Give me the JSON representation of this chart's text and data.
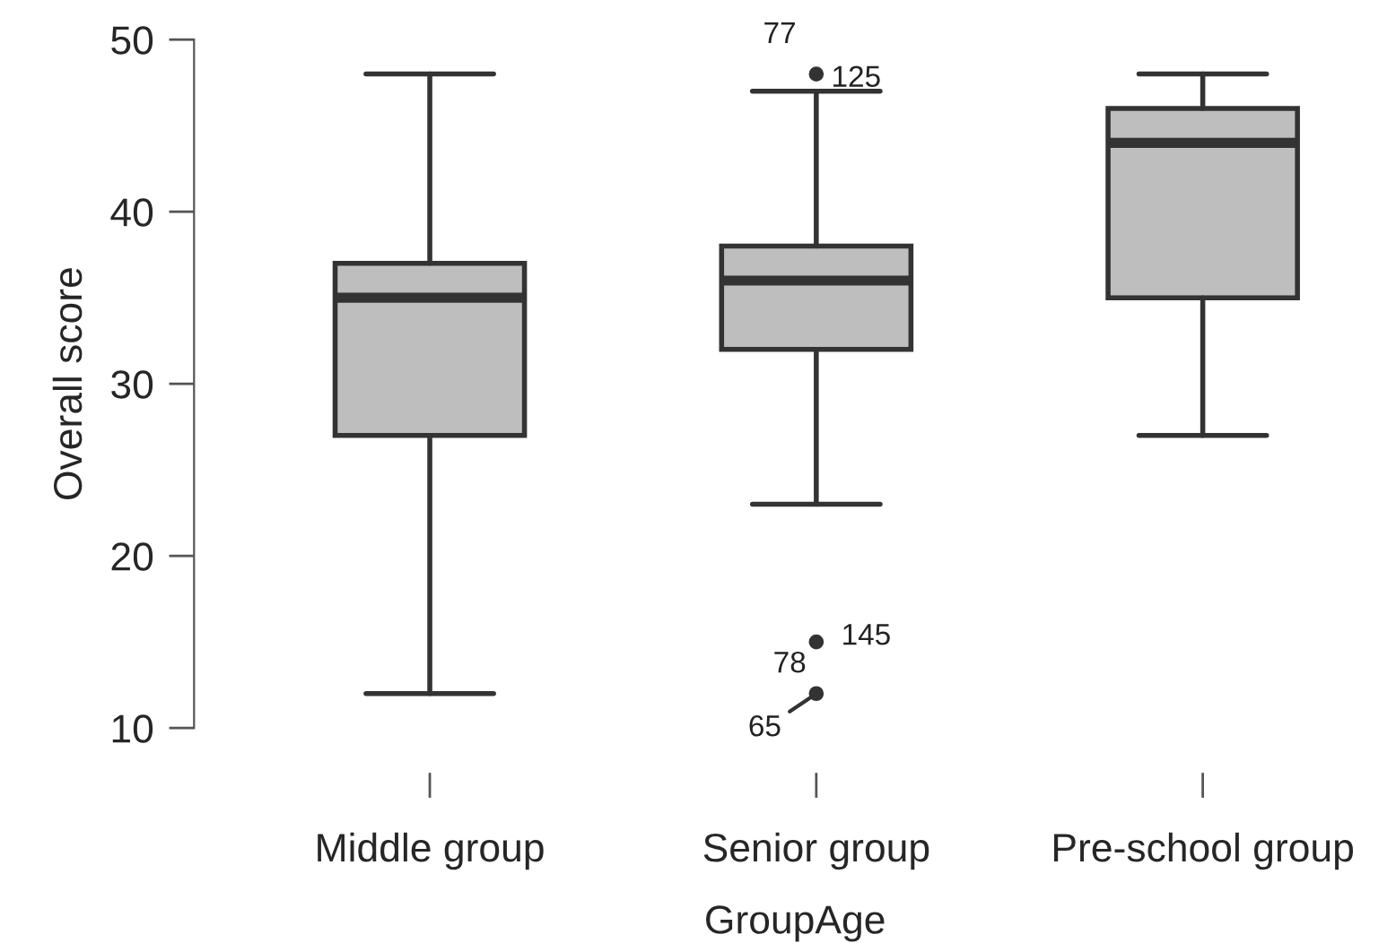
{
  "chart_data": {
    "type": "box",
    "xlabel": "GroupAge",
    "ylabel": "Overall score",
    "categories": [
      "Middle group",
      "Senior group",
      "Pre-school group"
    ],
    "color": "#bebebe",
    "boxes": [
      {
        "low": 12,
        "q1": 27,
        "median": 35,
        "q3": 37,
        "high": 48
      },
      {
        "low": 23,
        "q1": 32,
        "median": 36,
        "q3": 38,
        "high": 47,
        "outliers": [
          48,
          15,
          12
        ]
      },
      {
        "low": 27,
        "q1": 35,
        "median": 44,
        "q3": 46,
        "high": 48
      }
    ],
    "ylim": [
      10,
      50
    ],
    "yticks": [
      10,
      20,
      30,
      40,
      50
    ],
    "annotations": [
      "77",
      "125",
      "145",
      "78",
      "65"
    ]
  }
}
